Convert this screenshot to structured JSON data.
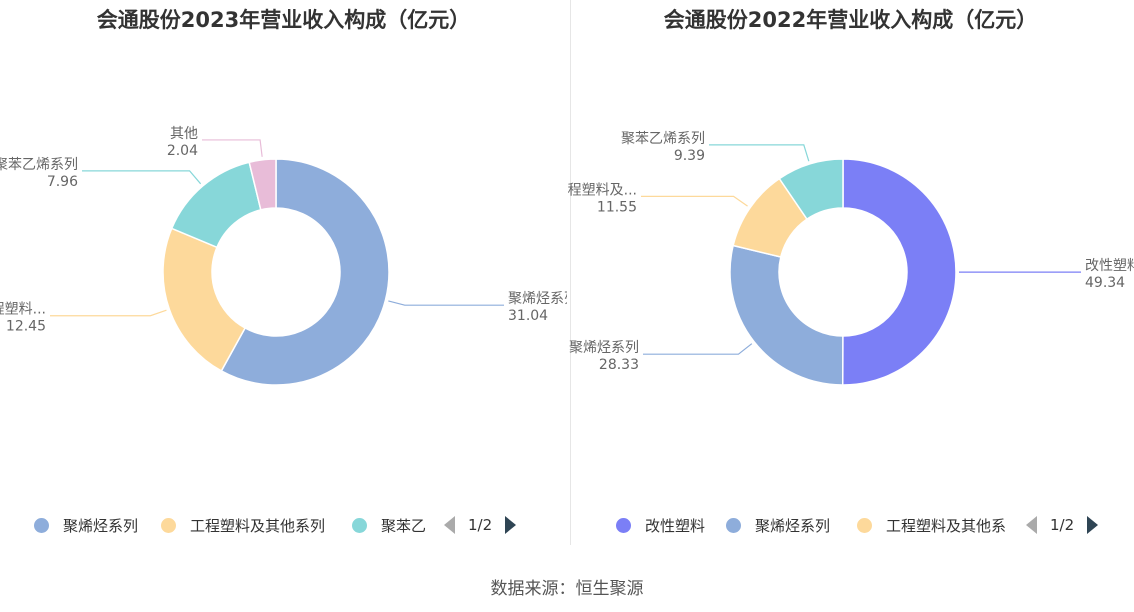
{
  "source": "数据来源：恒生聚源",
  "chart_data": [
    {
      "type": "pie",
      "title": "会通股份2023年营业收入构成（亿元）",
      "slices": [
        {
          "label": "聚烯烃系列",
          "display_label": "聚烯烃系列",
          "value": 31.04,
          "color": "#8eaddb"
        },
        {
          "label": "工程塑料及其他系列",
          "display_label": "工程塑料...",
          "value": 12.45,
          "color": "#fdd99b"
        },
        {
          "label": "聚苯乙烯系列",
          "display_label": "聚苯乙烯系列",
          "value": 7.96,
          "color": "#87d7d9"
        },
        {
          "label": "其他",
          "display_label": "其他",
          "value": 2.04,
          "color": "#e8bcd8"
        }
      ],
      "legend": {
        "position": "bottom",
        "items": [
          "聚烯烃系列",
          "工程塑料及其他系列",
          "聚苯乙"
        ],
        "page": "1/2"
      }
    },
    {
      "type": "pie",
      "title": "会通股份2022年营业收入构成（亿元）",
      "slices": [
        {
          "label": "改性塑料",
          "display_label": "改性塑料",
          "value": 49.34,
          "color": "#7b7ff6"
        },
        {
          "label": "聚烯烃系列",
          "display_label": "聚烯烃系列",
          "value": 28.33,
          "color": "#8eaddb"
        },
        {
          "label": "工程塑料及其他系列",
          "display_label": "工程塑料及...",
          "value": 11.55,
          "color": "#fdd99b"
        },
        {
          "label": "聚苯乙烯系列",
          "display_label": "聚苯乙烯系列",
          "value": 9.39,
          "color": "#87d7d9"
        }
      ],
      "legend": {
        "position": "bottom",
        "items": [
          "改性塑料",
          "聚烯烃系列",
          "工程塑料及其他系"
        ],
        "page": "1/2"
      }
    }
  ]
}
